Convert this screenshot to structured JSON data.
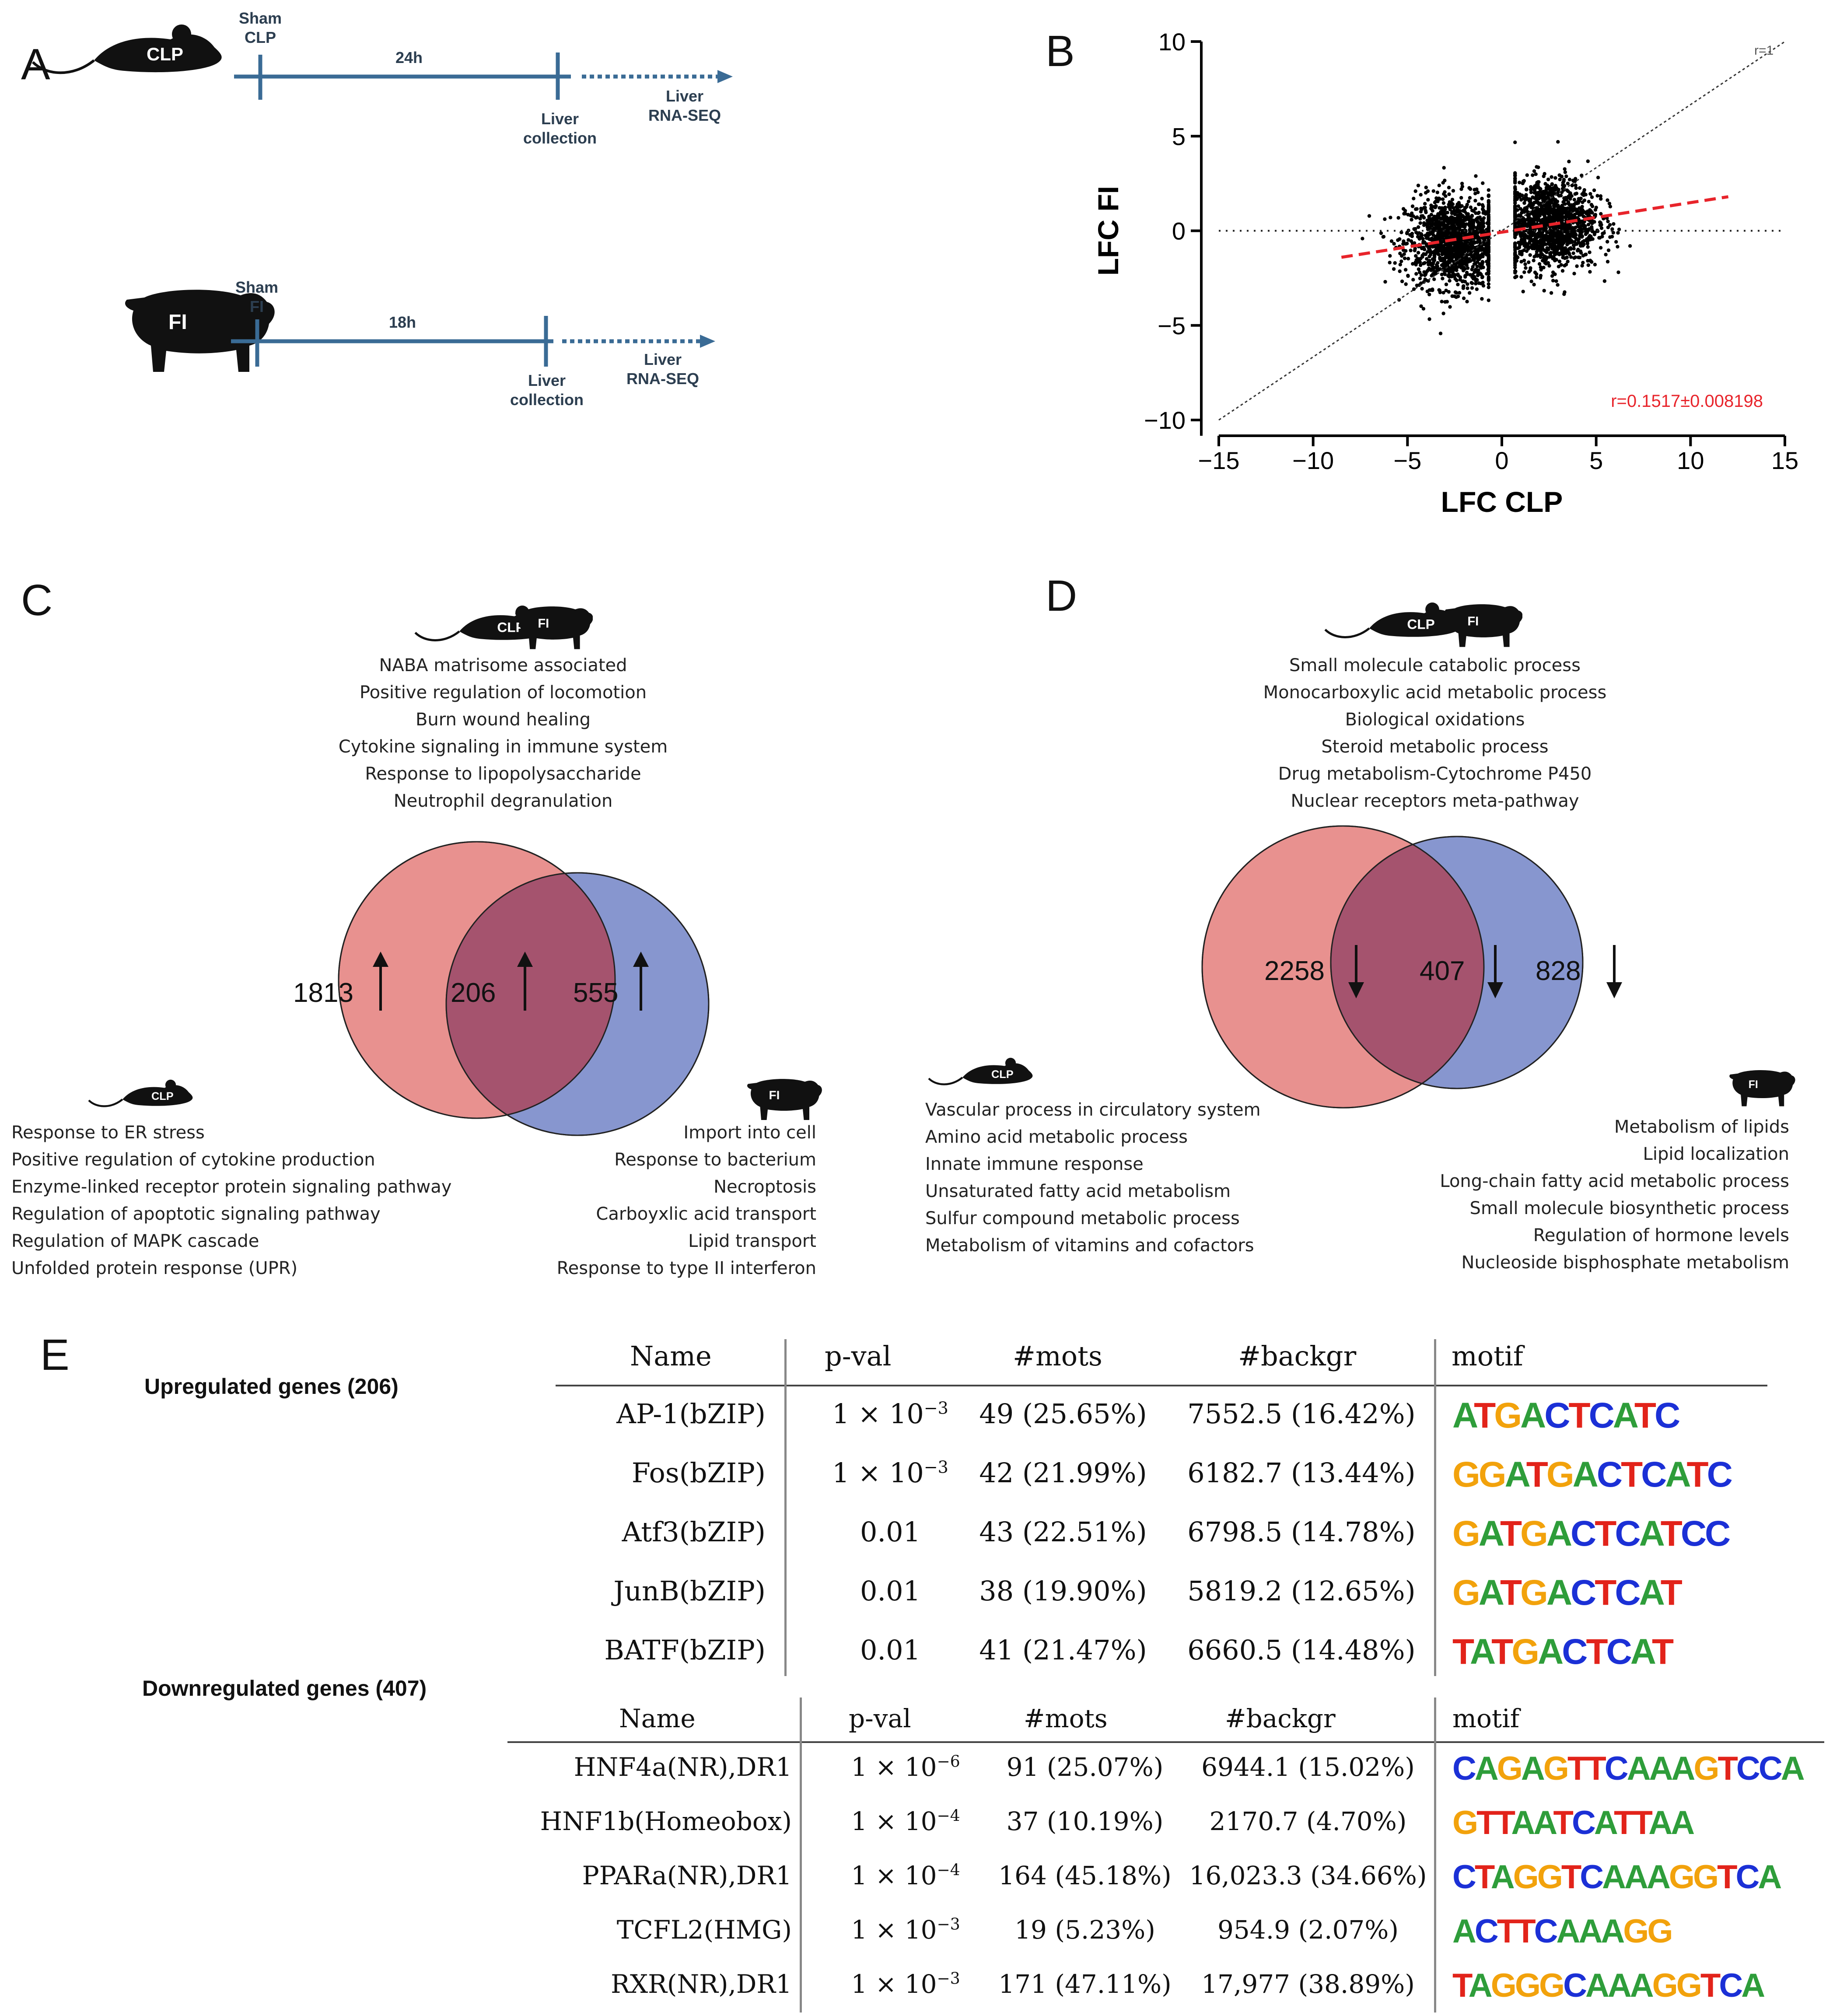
{
  "panels": [
    "A",
    "B",
    "C",
    "D",
    "E"
  ],
  "panelA": {
    "top": {
      "animal_label": "CLP",
      "start_label": [
        "Sham",
        "CLP"
      ],
      "duration": "24h",
      "collection": [
        "Liver",
        "collection"
      ],
      "rnaseq": [
        "Liver",
        "RNA-SEQ"
      ]
    },
    "bottom": {
      "animal_label": "FI",
      "start_label": [
        "Sham",
        "FI"
      ],
      "duration": "18h",
      "collection": [
        "Liver",
        "collection"
      ],
      "rnaseq": [
        "Liver",
        "RNA-SEQ"
      ]
    },
    "line_color": "#3a6b95"
  },
  "chart_data": [
    {
      "type": "scatter",
      "xlabel": "LFC CLP",
      "ylabel": "LFC FI",
      "xlim": [
        -15,
        15
      ],
      "ylim": [
        -10,
        10
      ],
      "xticks": [
        -15,
        -10,
        -5,
        0,
        5,
        10,
        15
      ],
      "yticks": [
        -10,
        -5,
        0,
        5,
        10
      ],
      "xtick_labels": [
        "−15",
        "−10",
        "−5",
        "0",
        "5",
        "10",
        "15"
      ],
      "ytick_labels": [
        "−10",
        "−5",
        "0",
        "5",
        "10"
      ],
      "identity_label": "r=1",
      "correlation_label": "r=0.1517±0.008198",
      "fit_line": {
        "x": [
          -8.5,
          12
        ],
        "y": [
          -1.4,
          1.8
        ],
        "color": "#e8242b"
      },
      "identity_line": {
        "x": [
          -15,
          15
        ],
        "y": [
          -10,
          10
        ]
      },
      "clusters": [
        {
          "x_range": [
            -8,
            -0.7
          ],
          "y_range": [
            -8,
            5.2
          ],
          "center": [
            -2.5,
            -0.6
          ]
        },
        {
          "x_range": [
            0.7,
            8
          ],
          "y_range": [
            -6,
            5.8
          ],
          "center": [
            2.5,
            0.4
          ]
        }
      ]
    },
    {
      "type": "venn",
      "panel": "C",
      "sets": [
        "CLP",
        "FI"
      ],
      "values": {
        "CLP_only": 1813,
        "both": 206,
        "FI_only": 555
      },
      "direction": "up",
      "colors": {
        "CLP": "#e8918f",
        "FI": "#8796cf",
        "both": "#a5536e"
      }
    },
    {
      "type": "venn",
      "panel": "D",
      "sets": [
        "CLP",
        "FI"
      ],
      "values": {
        "CLP_only": 2258,
        "both": 407,
        "FI_only": 828
      },
      "direction": "down",
      "colors": {
        "CLP": "#e8918f",
        "FI": "#8796cf",
        "both": "#a5536e"
      }
    }
  ],
  "panelC": {
    "icon_labels": {
      "clp": "CLP",
      "fi": "FI"
    },
    "shared_terms": [
      "NABA matrisome associated",
      "Positive regulation of locomotion",
      "Burn wound healing",
      "Cytokine signaling in immune system",
      "Response to lipopolysaccharide",
      "Neutrophil degranulation"
    ],
    "clp_terms": [
      "Response to ER stress",
      "Positive regulation of cytokine production",
      "Enzyme-linked receptor protein signaling pathway",
      "Regulation of apoptotic signaling pathway",
      "Regulation of MAPK cascade",
      "Unfolded protein response (UPR)"
    ],
    "fi_terms": [
      "Import into cell",
      "Response to bacterium",
      "Necroptosis",
      "Carboyxlic acid transport",
      "Lipid transport",
      "Response to type II interferon"
    ],
    "counts": {
      "clp": "1813",
      "both": "206",
      "fi": "555"
    }
  },
  "panelD": {
    "icon_labels": {
      "clp": "CLP",
      "fi": "FI"
    },
    "shared_terms": [
      "Small molecule catabolic process",
      "Monocarboxylic acid metabolic process",
      "Biological oxidations",
      "Steroid metabolic process",
      "Drug metabolism-Cytochrome P450",
      "Nuclear receptors meta-pathway"
    ],
    "clp_terms": [
      "Vascular process in circulatory system",
      "Amino acid metabolic process",
      "Innate immune response",
      "Unsaturated fatty acid metabolism",
      "Sulfur compound metabolic process",
      "Metabolism of vitamins and cofactors"
    ],
    "fi_terms": [
      "Metabolism of lipids",
      "Lipid localization",
      "Long-chain fatty acid metabolic process",
      "Small molecule biosynthetic process",
      "Regulation of hormone levels",
      "Nucleoside bisphosphate metabolism"
    ],
    "counts": {
      "clp": "2258",
      "both": "407",
      "fi": "828"
    }
  },
  "panelE": {
    "up": {
      "title": "Upregulated genes (206)",
      "headers": [
        "Name",
        "p-val",
        "#mots",
        "#backgr",
        "motif"
      ],
      "rows": [
        {
          "name": "AP-1(bZIP)",
          "pval_base": "1 × 10",
          "pval_exp": "−3",
          "pval_plain": "",
          "mots": "49 (25.65%)",
          "backgr": "7552.5 (16.42%)",
          "motif": "ATGACTCATC"
        },
        {
          "name": "Fos(bZIP)",
          "pval_base": "1 × 10",
          "pval_exp": "−3",
          "pval_plain": "",
          "mots": "42 (21.99%)",
          "backgr": "6182.7 (13.44%)",
          "motif": "GGATGACTCATC"
        },
        {
          "name": "Atf3(bZIP)",
          "pval_base": "",
          "pval_exp": "",
          "pval_plain": "0.01",
          "mots": "43 (22.51%)",
          "backgr": "6798.5 (14.78%)",
          "motif": "GATGACTCATCC"
        },
        {
          "name": "JunB(bZIP)",
          "pval_base": "",
          "pval_exp": "",
          "pval_plain": "0.01",
          "mots": "38 (19.90%)",
          "backgr": "5819.2 (12.65%)",
          "motif": "GATGACTCAT"
        },
        {
          "name": "BATF(bZIP)",
          "pval_base": "",
          "pval_exp": "",
          "pval_plain": "0.01",
          "mots": "41 (21.47%)",
          "backgr": "6660.5 (14.48%)",
          "motif": "TATGACTCAT"
        }
      ]
    },
    "down": {
      "title": "Downregulated genes (407)",
      "headers": [
        "Name",
        "p-val",
        "#mots",
        "#backgr",
        "motif"
      ],
      "rows": [
        {
          "name": "HNF4a(NR),DR1",
          "pval_base": "1 × 10",
          "pval_exp": "−6",
          "mots": "91 (25.07%)",
          "backgr": "6944.1 (15.02%)",
          "motif": "CAGAGTTCAAAGTCCA"
        },
        {
          "name": "HNF1b(Homeobox)",
          "pval_base": "1 × 10",
          "pval_exp": "−4",
          "mots": "37 (10.19%)",
          "backgr": "2170.7 (4.70%)",
          "motif": "GTTAATCATTAA"
        },
        {
          "name": "PPARa(NR),DR1",
          "pval_base": "1 × 10",
          "pval_exp": "−4",
          "mots": "164 (45.18%)",
          "backgr": "16,023.3 (34.66%)",
          "motif": "CTAGGTCAAAGGTCA"
        },
        {
          "name": "TCFL2(HMG)",
          "pval_base": "1 × 10",
          "pval_exp": "−3",
          "mots": "19 (5.23%)",
          "backgr": "954.9 (2.07%)",
          "motif": "ACTTCAAAGG"
        },
        {
          "name": "RXR(NR),DR1",
          "pval_base": "1 × 10",
          "pval_exp": "−3",
          "mots": "171 (47.11%)",
          "backgr": "17,977 (38.89%)",
          "motif": "TAGGGCAAAGGTCA"
        }
      ]
    },
    "motif_colors": {
      "A": "#2e9d3a",
      "C": "#1b30d6",
      "G": "#f2a20c",
      "T": "#e2231a"
    }
  }
}
